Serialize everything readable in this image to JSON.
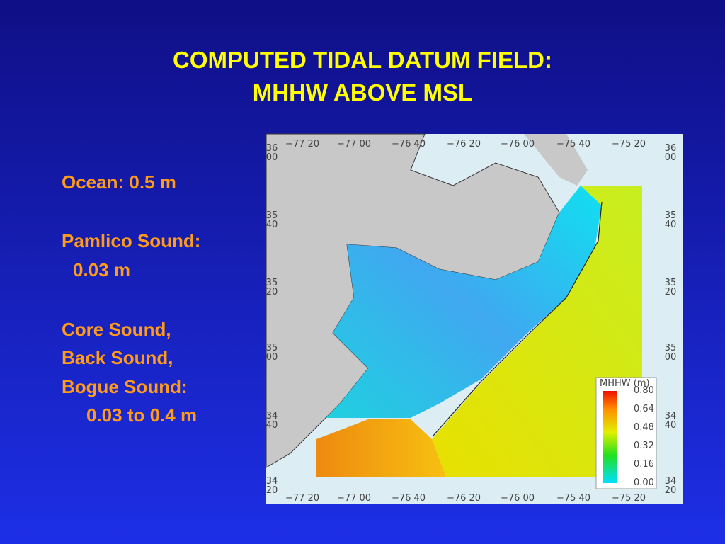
{
  "slide": {
    "title_lines": [
      "COMPUTED TIDAL DATUM FIELD:",
      "MHHW ABOVE MSL"
    ],
    "notes": [
      "Ocean: 0.5 m",
      "Pamlico Sound:",
      "0.03 m",
      "Core Sound,",
      "Back Sound,",
      "Bogue Sound:",
      "0.03 to 0.4 m"
    ]
  },
  "map": {
    "lon_labels": [
      "−77 20",
      "−77 00",
      "−76 40",
      "−76 20",
      "−76 00",
      "−75 40",
      "−75 20"
    ],
    "lat_labels": [
      [
        "36",
        "00"
      ],
      [
        "35",
        "40"
      ],
      [
        "35",
        "20"
      ],
      [
        "35",
        "00"
      ],
      [
        "34",
        "40"
      ],
      [
        "34",
        "20"
      ]
    ],
    "colorbar": {
      "title": "MHHW  (m)",
      "ticks": [
        "0.80",
        "0.64",
        "0.48",
        "0.32",
        "0.16",
        "0.00"
      ]
    }
  }
}
